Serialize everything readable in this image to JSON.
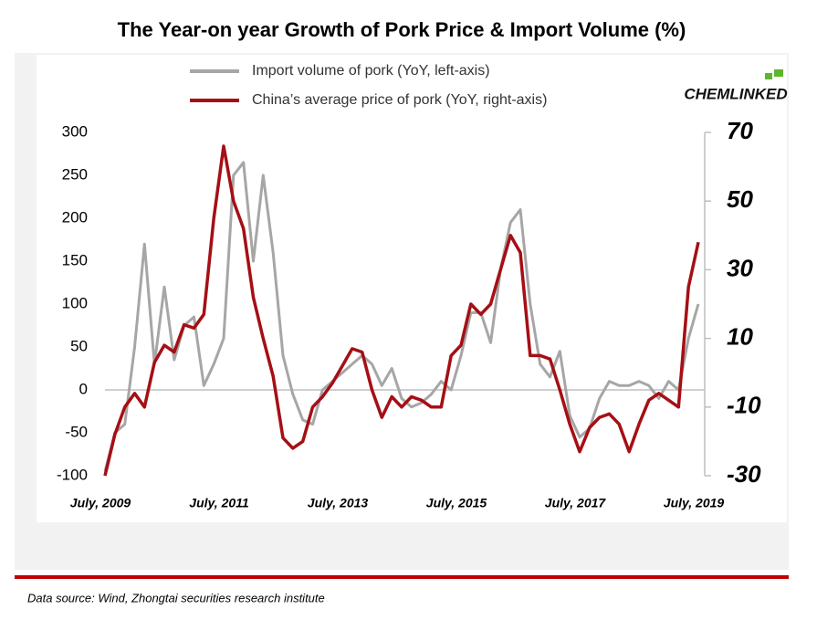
{
  "chart_data": {
    "type": "line",
    "title": "The Year-on year Growth of Pork Price & Import Volume (%)",
    "logo": "CHEMLINKED",
    "source": "Data source: Wind, Zhongtai securities research institute",
    "categories": [
      "July, 2009",
      null,
      null,
      null,
      null,
      null,
      null,
      null,
      null,
      null,
      null,
      null,
      "July, 2011",
      null,
      null,
      null,
      null,
      null,
      null,
      null,
      null,
      null,
      null,
      null,
      "July, 2013",
      null,
      null,
      null,
      null,
      null,
      null,
      null,
      null,
      null,
      null,
      null,
      "July, 2015",
      null,
      null,
      null,
      null,
      null,
      null,
      null,
      null,
      null,
      null,
      null,
      "July, 2017",
      null,
      null,
      null,
      null,
      null,
      null,
      null,
      null,
      null,
      null,
      null,
      "July, 2019"
    ],
    "series": [
      {
        "name": "Import volume of pork (YoY, left-axis)",
        "color": "#a6a6a6",
        "axis": "y",
        "values": [
          -95,
          -50,
          -40,
          50,
          170,
          30,
          120,
          35,
          75,
          85,
          5,
          30,
          60,
          250,
          265,
          150,
          250,
          160,
          40,
          -5,
          -35,
          -40,
          0,
          10,
          20,
          30,
          40,
          30,
          5,
          25,
          -10,
          -20,
          -15,
          -5,
          10,
          0,
          40,
          90,
          90,
          55,
          140,
          195,
          210,
          100,
          30,
          15,
          45,
          -30,
          -55,
          -45,
          -10,
          10,
          5,
          5,
          10,
          5,
          -10,
          10,
          0,
          60,
          100
        ]
      },
      {
        "name": "China’s average price of pork (YoY, right-axis)",
        "color": "#a50f15",
        "axis": "y2",
        "values": [
          -30,
          -18,
          -10,
          -6,
          -10,
          3,
          8,
          6,
          14,
          13,
          17,
          45,
          66,
          50,
          42,
          22,
          10,
          -1,
          -19,
          -22,
          -20,
          -10,
          -7,
          -3,
          2,
          7,
          6,
          -5,
          -13,
          -7,
          -10,
          -7,
          -8,
          -10,
          -10,
          5,
          8,
          20,
          17,
          20,
          30,
          40,
          35,
          5,
          5,
          4,
          -5,
          -15,
          -23,
          -16,
          -13,
          -12,
          -15,
          -23,
          -15,
          -8,
          -6,
          -8,
          -10,
          25,
          38
        ]
      }
    ],
    "ylim": [
      -100,
      300
    ],
    "yticks": [
      -100,
      -50,
      0,
      50,
      100,
      150,
      200,
      250,
      300
    ],
    "y2lim": [
      -30,
      70
    ],
    "y2ticks": [
      -30,
      -10,
      10,
      30,
      50,
      70
    ]
  }
}
